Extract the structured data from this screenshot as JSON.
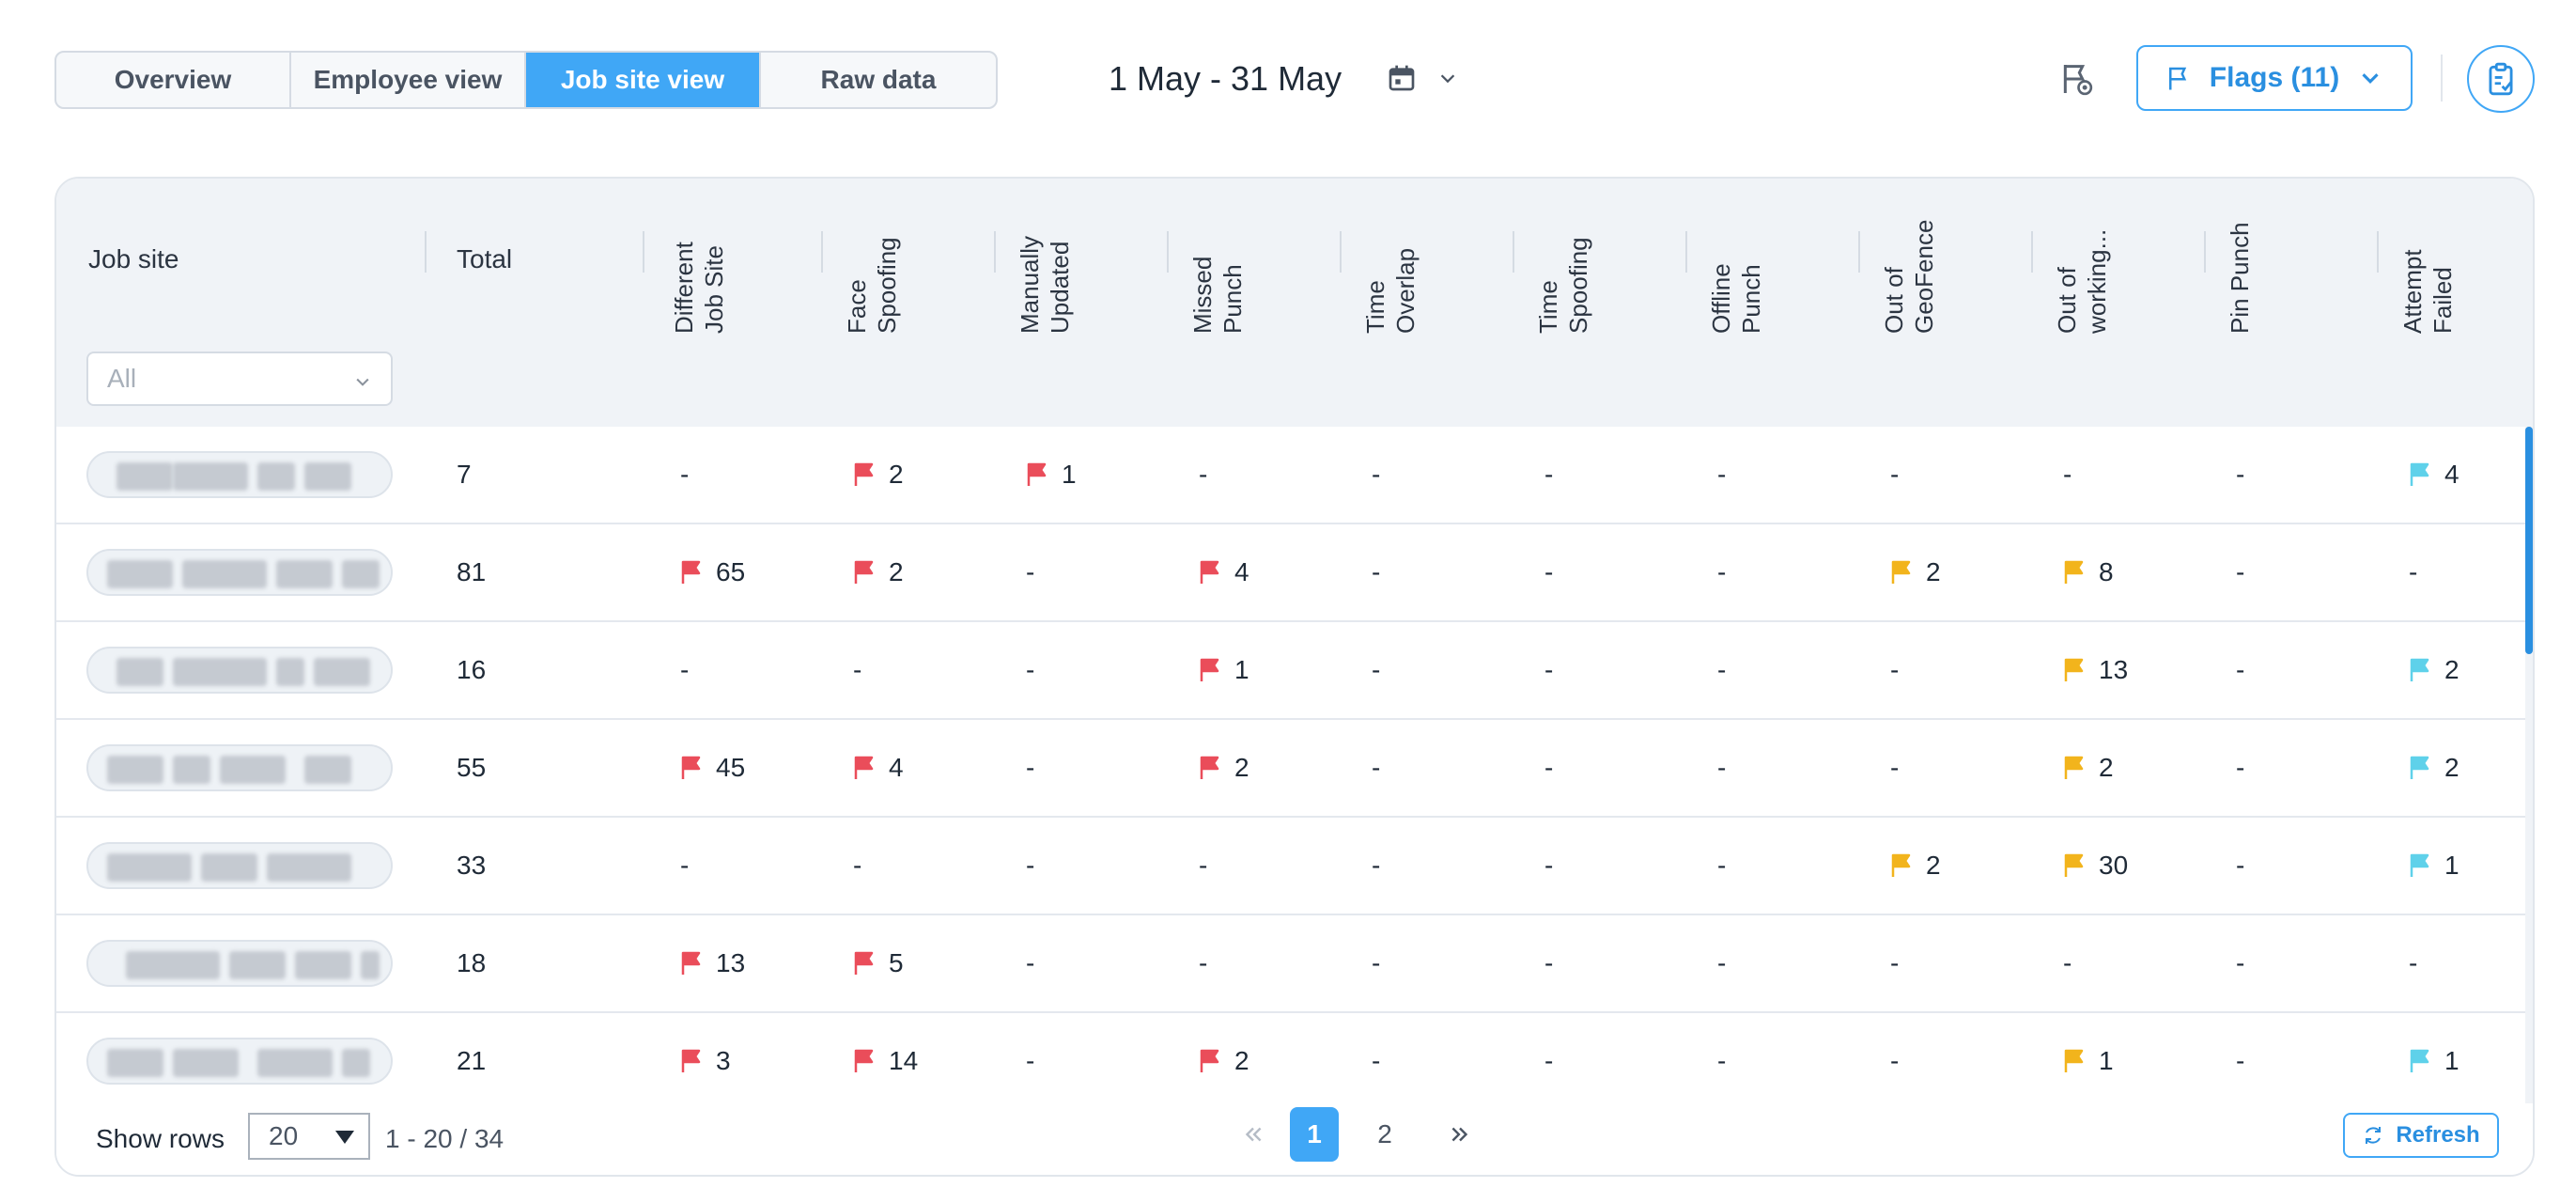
{
  "tabs": [
    "Overview",
    "Employee view",
    "Job site view",
    "Raw data"
  ],
  "active_tab": 2,
  "date_range": "1 May - 31 May",
  "flags_button": "Flags (11)",
  "columns": {
    "job_site": "Job site",
    "total": "Total",
    "flags": [
      [
        "Different",
        "Job Site"
      ],
      [
        "Face",
        "Spoofing"
      ],
      [
        "Manually",
        "Updated"
      ],
      [
        "Missed",
        "Punch"
      ],
      [
        "Time",
        "Overlap"
      ],
      [
        "Time",
        "Spoofing"
      ],
      [
        "Offline",
        "Punch"
      ],
      [
        "Out of",
        "GeoFence"
      ],
      [
        "Out of",
        "working..."
      ],
      [
        "Pin Punch"
      ],
      [
        "Attempt",
        "Failed"
      ]
    ]
  },
  "filter": {
    "value": "All"
  },
  "colors": {
    "red": "#ea4d5a",
    "yellow": "#f2b41c",
    "cyan": "#5fd1ea",
    "accent": "#40a7f6"
  },
  "flag_column_colors": [
    "red",
    "red",
    "red",
    "red",
    "red",
    "red",
    "red",
    "yellow",
    "yellow",
    "cyan",
    "cyan"
  ],
  "rows": [
    {
      "total": "7",
      "cells": [
        "-",
        "2",
        "1",
        "-",
        "-",
        "-",
        "-",
        "-",
        "-",
        "-",
        "4"
      ]
    },
    {
      "total": "81",
      "cells": [
        "65",
        "2",
        "-",
        "4",
        "-",
        "-",
        "-",
        "2",
        "8",
        "-",
        "-"
      ]
    },
    {
      "total": "16",
      "cells": [
        "-",
        "-",
        "-",
        "1",
        "-",
        "-",
        "-",
        "-",
        "13",
        "-",
        "2"
      ]
    },
    {
      "total": "55",
      "cells": [
        "45",
        "4",
        "-",
        "2",
        "-",
        "-",
        "-",
        "-",
        "2",
        "-",
        "2"
      ]
    },
    {
      "total": "33",
      "cells": [
        "-",
        "-",
        "-",
        "-",
        "-",
        "-",
        "-",
        "2",
        "30",
        "-",
        "1"
      ]
    },
    {
      "total": "18",
      "cells": [
        "13",
        "5",
        "-",
        "-",
        "-",
        "-",
        "-",
        "-",
        "-",
        "-",
        "-"
      ]
    },
    {
      "total": "21",
      "cells": [
        "3",
        "14",
        "-",
        "2",
        "-",
        "-",
        "-",
        "-",
        "1",
        "-",
        "1"
      ]
    }
  ],
  "footer": {
    "show_rows_label": "Show rows",
    "rows_value": "20",
    "range": "1 - 20 / 34",
    "pages": [
      "1",
      "2"
    ],
    "active_page": "1",
    "refresh_label": "Refresh"
  }
}
